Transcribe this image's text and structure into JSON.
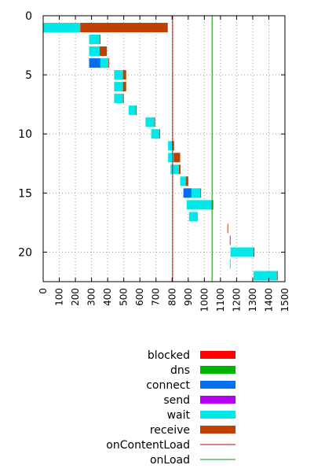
{
  "chart_data": {
    "type": "bar",
    "subtype": "waterfall",
    "x": {
      "range": [
        0,
        1500
      ],
      "ticks": [
        0,
        100,
        200,
        300,
        400,
        500,
        600,
        700,
        800,
        900,
        1000,
        1100,
        1200,
        1300,
        1400,
        1500
      ],
      "tick_orientation": "vertical"
    },
    "y": {
      "range": [
        0,
        22.5
      ],
      "inverted": true,
      "ticks": [
        0,
        5,
        10,
        15,
        20
      ]
    },
    "grid": true,
    "grid_style": "dotted",
    "legend_placement": "bottom",
    "series": [
      {
        "name": "blocked",
        "color": "#ff0000"
      },
      {
        "name": "dns",
        "color": "#00b400"
      },
      {
        "name": "connect",
        "color": "#0070f0"
      },
      {
        "name": "send",
        "color": "#b400f0"
      },
      {
        "name": "wait",
        "color": "#00e8e8"
      },
      {
        "name": "receive",
        "color": "#c04000"
      }
    ],
    "markers": [
      {
        "name": "onContentLoad",
        "color": "#cc0000",
        "x": 803
      },
      {
        "name": "onLoad",
        "color": "#009900",
        "x": 1048
      }
    ],
    "requests": [
      {
        "row": 1,
        "segments": [
          {
            "phase": "wait",
            "start": 0,
            "end": 230
          },
          {
            "phase": "receive",
            "start": 230,
            "end": 773
          }
        ]
      },
      {
        "row": 2,
        "segments": [
          {
            "phase": "wait",
            "start": 285,
            "end": 350
          },
          {
            "phase": "receive",
            "start": 350,
            "end": 355
          }
        ]
      },
      {
        "row": 3,
        "segments": [
          {
            "phase": "wait",
            "start": 285,
            "end": 350
          },
          {
            "phase": "receive",
            "start": 350,
            "end": 395
          }
        ]
      },
      {
        "row": 4,
        "segments": [
          {
            "phase": "connect",
            "start": 285,
            "end": 355
          },
          {
            "phase": "wait",
            "start": 355,
            "end": 405
          },
          {
            "phase": "receive",
            "start": 405,
            "end": 410
          }
        ]
      },
      {
        "row": 5,
        "segments": [
          {
            "phase": "wait",
            "start": 440,
            "end": 495
          },
          {
            "phase": "receive",
            "start": 495,
            "end": 515
          }
        ]
      },
      {
        "row": 6,
        "segments": [
          {
            "phase": "wait",
            "start": 440,
            "end": 495
          },
          {
            "phase": "receive",
            "start": 495,
            "end": 515
          }
        ]
      },
      {
        "row": 7,
        "segments": [
          {
            "phase": "wait",
            "start": 440,
            "end": 495
          },
          {
            "phase": "receive",
            "start": 495,
            "end": 500
          }
        ]
      },
      {
        "row": 8,
        "segments": [
          {
            "phase": "wait",
            "start": 530,
            "end": 575
          },
          {
            "phase": "receive",
            "start": 575,
            "end": 580
          }
        ]
      },
      {
        "row": 9,
        "segments": [
          {
            "phase": "wait",
            "start": 635,
            "end": 690
          },
          {
            "phase": "receive",
            "start": 690,
            "end": 695
          }
        ]
      },
      {
        "row": 10,
        "segments": [
          {
            "phase": "wait",
            "start": 670,
            "end": 720
          },
          {
            "phase": "receive",
            "start": 720,
            "end": 725
          }
        ]
      },
      {
        "row": 11,
        "segments": [
          {
            "phase": "wait",
            "start": 775,
            "end": 800
          },
          {
            "phase": "receive",
            "start": 800,
            "end": 812
          }
        ]
      },
      {
        "row": 12,
        "segments": [
          {
            "phase": "wait",
            "start": 775,
            "end": 810
          },
          {
            "phase": "receive",
            "start": 810,
            "end": 850
          }
        ]
      },
      {
        "row": 13,
        "segments": [
          {
            "phase": "wait",
            "start": 790,
            "end": 842
          },
          {
            "phase": "receive",
            "start": 842,
            "end": 852
          }
        ]
      },
      {
        "row": 14,
        "segments": [
          {
            "phase": "wait",
            "start": 850,
            "end": 885
          },
          {
            "phase": "receive",
            "start": 885,
            "end": 900
          }
        ]
      },
      {
        "row": 15,
        "segments": [
          {
            "phase": "connect",
            "start": 870,
            "end": 920
          },
          {
            "phase": "wait",
            "start": 920,
            "end": 975
          },
          {
            "phase": "receive",
            "start": 975,
            "end": 980
          }
        ]
      },
      {
        "row": 16,
        "segments": [
          {
            "phase": "wait",
            "start": 890,
            "end": 1050
          },
          {
            "phase": "receive",
            "start": 1050,
            "end": 1055
          }
        ]
      },
      {
        "row": 17,
        "segments": [
          {
            "phase": "wait",
            "start": 905,
            "end": 960
          }
        ]
      },
      {
        "row": 18,
        "segments": [
          {
            "phase": "receive",
            "start": 1143,
            "end": 1147
          }
        ]
      },
      {
        "row": 19,
        "segments": [
          {
            "phase": "receive",
            "start": 1158,
            "end": 1162
          }
        ]
      },
      {
        "row": 20,
        "segments": [
          {
            "phase": "wait",
            "start": 1162,
            "end": 1305
          },
          {
            "phase": "receive",
            "start": 1305,
            "end": 1310
          }
        ]
      },
      {
        "row": 21,
        "segments": [
          {
            "phase": "wait",
            "start": 1158,
            "end": 1163
          }
        ]
      },
      {
        "row": 22,
        "segments": [
          {
            "phase": "wait",
            "start": 1305,
            "end": 1450
          },
          {
            "phase": "receive",
            "start": 1450,
            "end": 1455
          }
        ]
      }
    ]
  }
}
